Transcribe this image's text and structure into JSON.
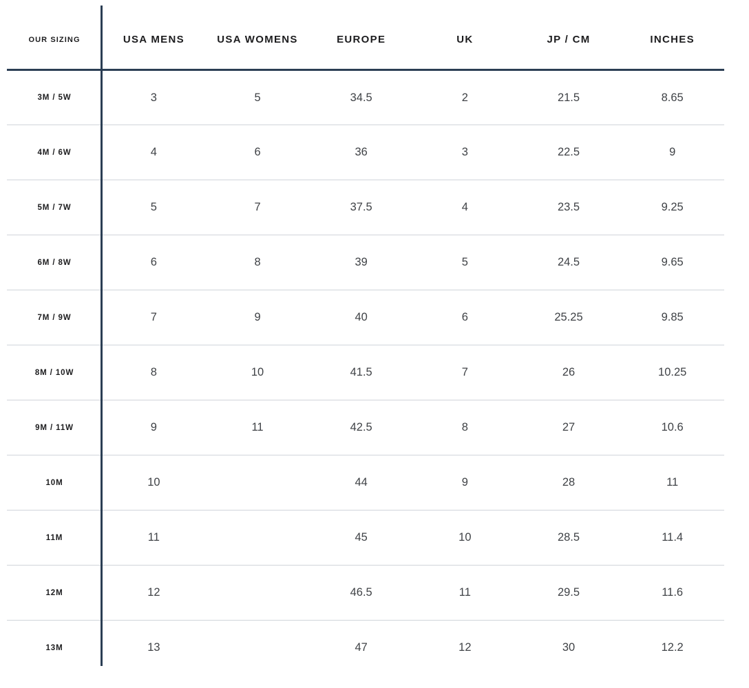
{
  "chart_data": {
    "type": "table",
    "columns": [
      "OUR SIZING",
      "USA MENS",
      "USA WOMENS",
      "EUROPE",
      "UK",
      "JP / CM",
      "INCHES"
    ],
    "rows": [
      [
        "3M / 5W",
        "3",
        "5",
        "34.5",
        "2",
        "21.5",
        "8.65"
      ],
      [
        "4M / 6W",
        "4",
        "6",
        "36",
        "3",
        "22.5",
        "9"
      ],
      [
        "5M / 7W",
        "5",
        "7",
        "37.5",
        "4",
        "23.5",
        "9.25"
      ],
      [
        "6M / 8W",
        "6",
        "8",
        "39",
        "5",
        "24.5",
        "9.65"
      ],
      [
        "7M / 9W",
        "7",
        "9",
        "40",
        "6",
        "25.25",
        "9.85"
      ],
      [
        "8M / 10W",
        "8",
        "10",
        "41.5",
        "7",
        "26",
        "10.25"
      ],
      [
        "9M / 11W",
        "9",
        "11",
        "42.5",
        "8",
        "27",
        "10.6"
      ],
      [
        "10M",
        "10",
        "",
        "44",
        "9",
        "28",
        "11"
      ],
      [
        "11M",
        "11",
        "",
        "45",
        "10",
        "28.5",
        "11.4"
      ],
      [
        "12M",
        "12",
        "",
        "46.5",
        "11",
        "29.5",
        "11.6"
      ],
      [
        "13M",
        "13",
        "",
        "47",
        "12",
        "30",
        "12.2"
      ]
    ],
    "layout": {
      "grid": "horizontal-separators-only",
      "vertical_divider_after_first_column": true,
      "header_rule": true,
      "outer_border": false
    }
  },
  "colors": {
    "divider": "#2b3e54",
    "row_separator": "#d0d4da",
    "header_text": "#1c1c1e",
    "value_text": "#3f4246",
    "background": "#ffffff"
  }
}
